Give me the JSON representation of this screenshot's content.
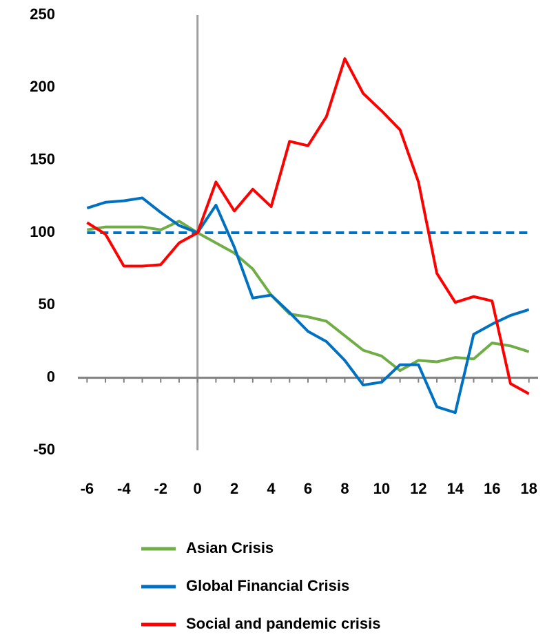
{
  "chart_data": {
    "type": "line",
    "x": [
      -6,
      -5,
      -4,
      -3,
      -2,
      -1,
      0,
      1,
      2,
      3,
      4,
      5,
      6,
      7,
      8,
      9,
      10,
      11,
      12,
      13,
      14,
      15,
      16,
      17,
      18
    ],
    "series": [
      {
        "name": "Asian Crisis",
        "color": "#70ad47",
        "values": [
          102,
          104,
          104,
          104,
          102,
          108,
          100,
          93,
          86,
          75,
          57,
          44,
          42,
          39,
          29,
          19,
          15,
          5,
          12,
          11,
          14,
          13,
          24,
          22,
          18
        ]
      },
      {
        "name": "Global Financial Crisis",
        "color": "#0070c0",
        "values": [
          117,
          121,
          122,
          124,
          114,
          105,
          100,
          119,
          90,
          55,
          57,
          45,
          32,
          25,
          12,
          -5,
          -3,
          9,
          9,
          -20,
          -24,
          30,
          37,
          43,
          47
        ]
      },
      {
        "name": "Social and pandemic crisis",
        "color": "#ff0000",
        "values": [
          107,
          99,
          77,
          77,
          78,
          93,
          100,
          135,
          115,
          130,
          118,
          163,
          160,
          180,
          220,
          196,
          184,
          171,
          135,
          72,
          52,
          56,
          53,
          -4,
          -11
        ]
      }
    ],
    "hlines": [
      {
        "value": 100,
        "color": "#0070c0",
        "dashed": true
      }
    ],
    "xlim": [
      -6.5,
      18.5
    ],
    "xticks": [
      -6,
      -4,
      -2,
      0,
      2,
      4,
      6,
      8,
      10,
      12,
      14,
      16,
      18
    ],
    "ylim": [
      -50,
      250
    ],
    "yticks": [
      -50,
      0,
      50,
      100,
      150,
      200,
      250
    ]
  }
}
